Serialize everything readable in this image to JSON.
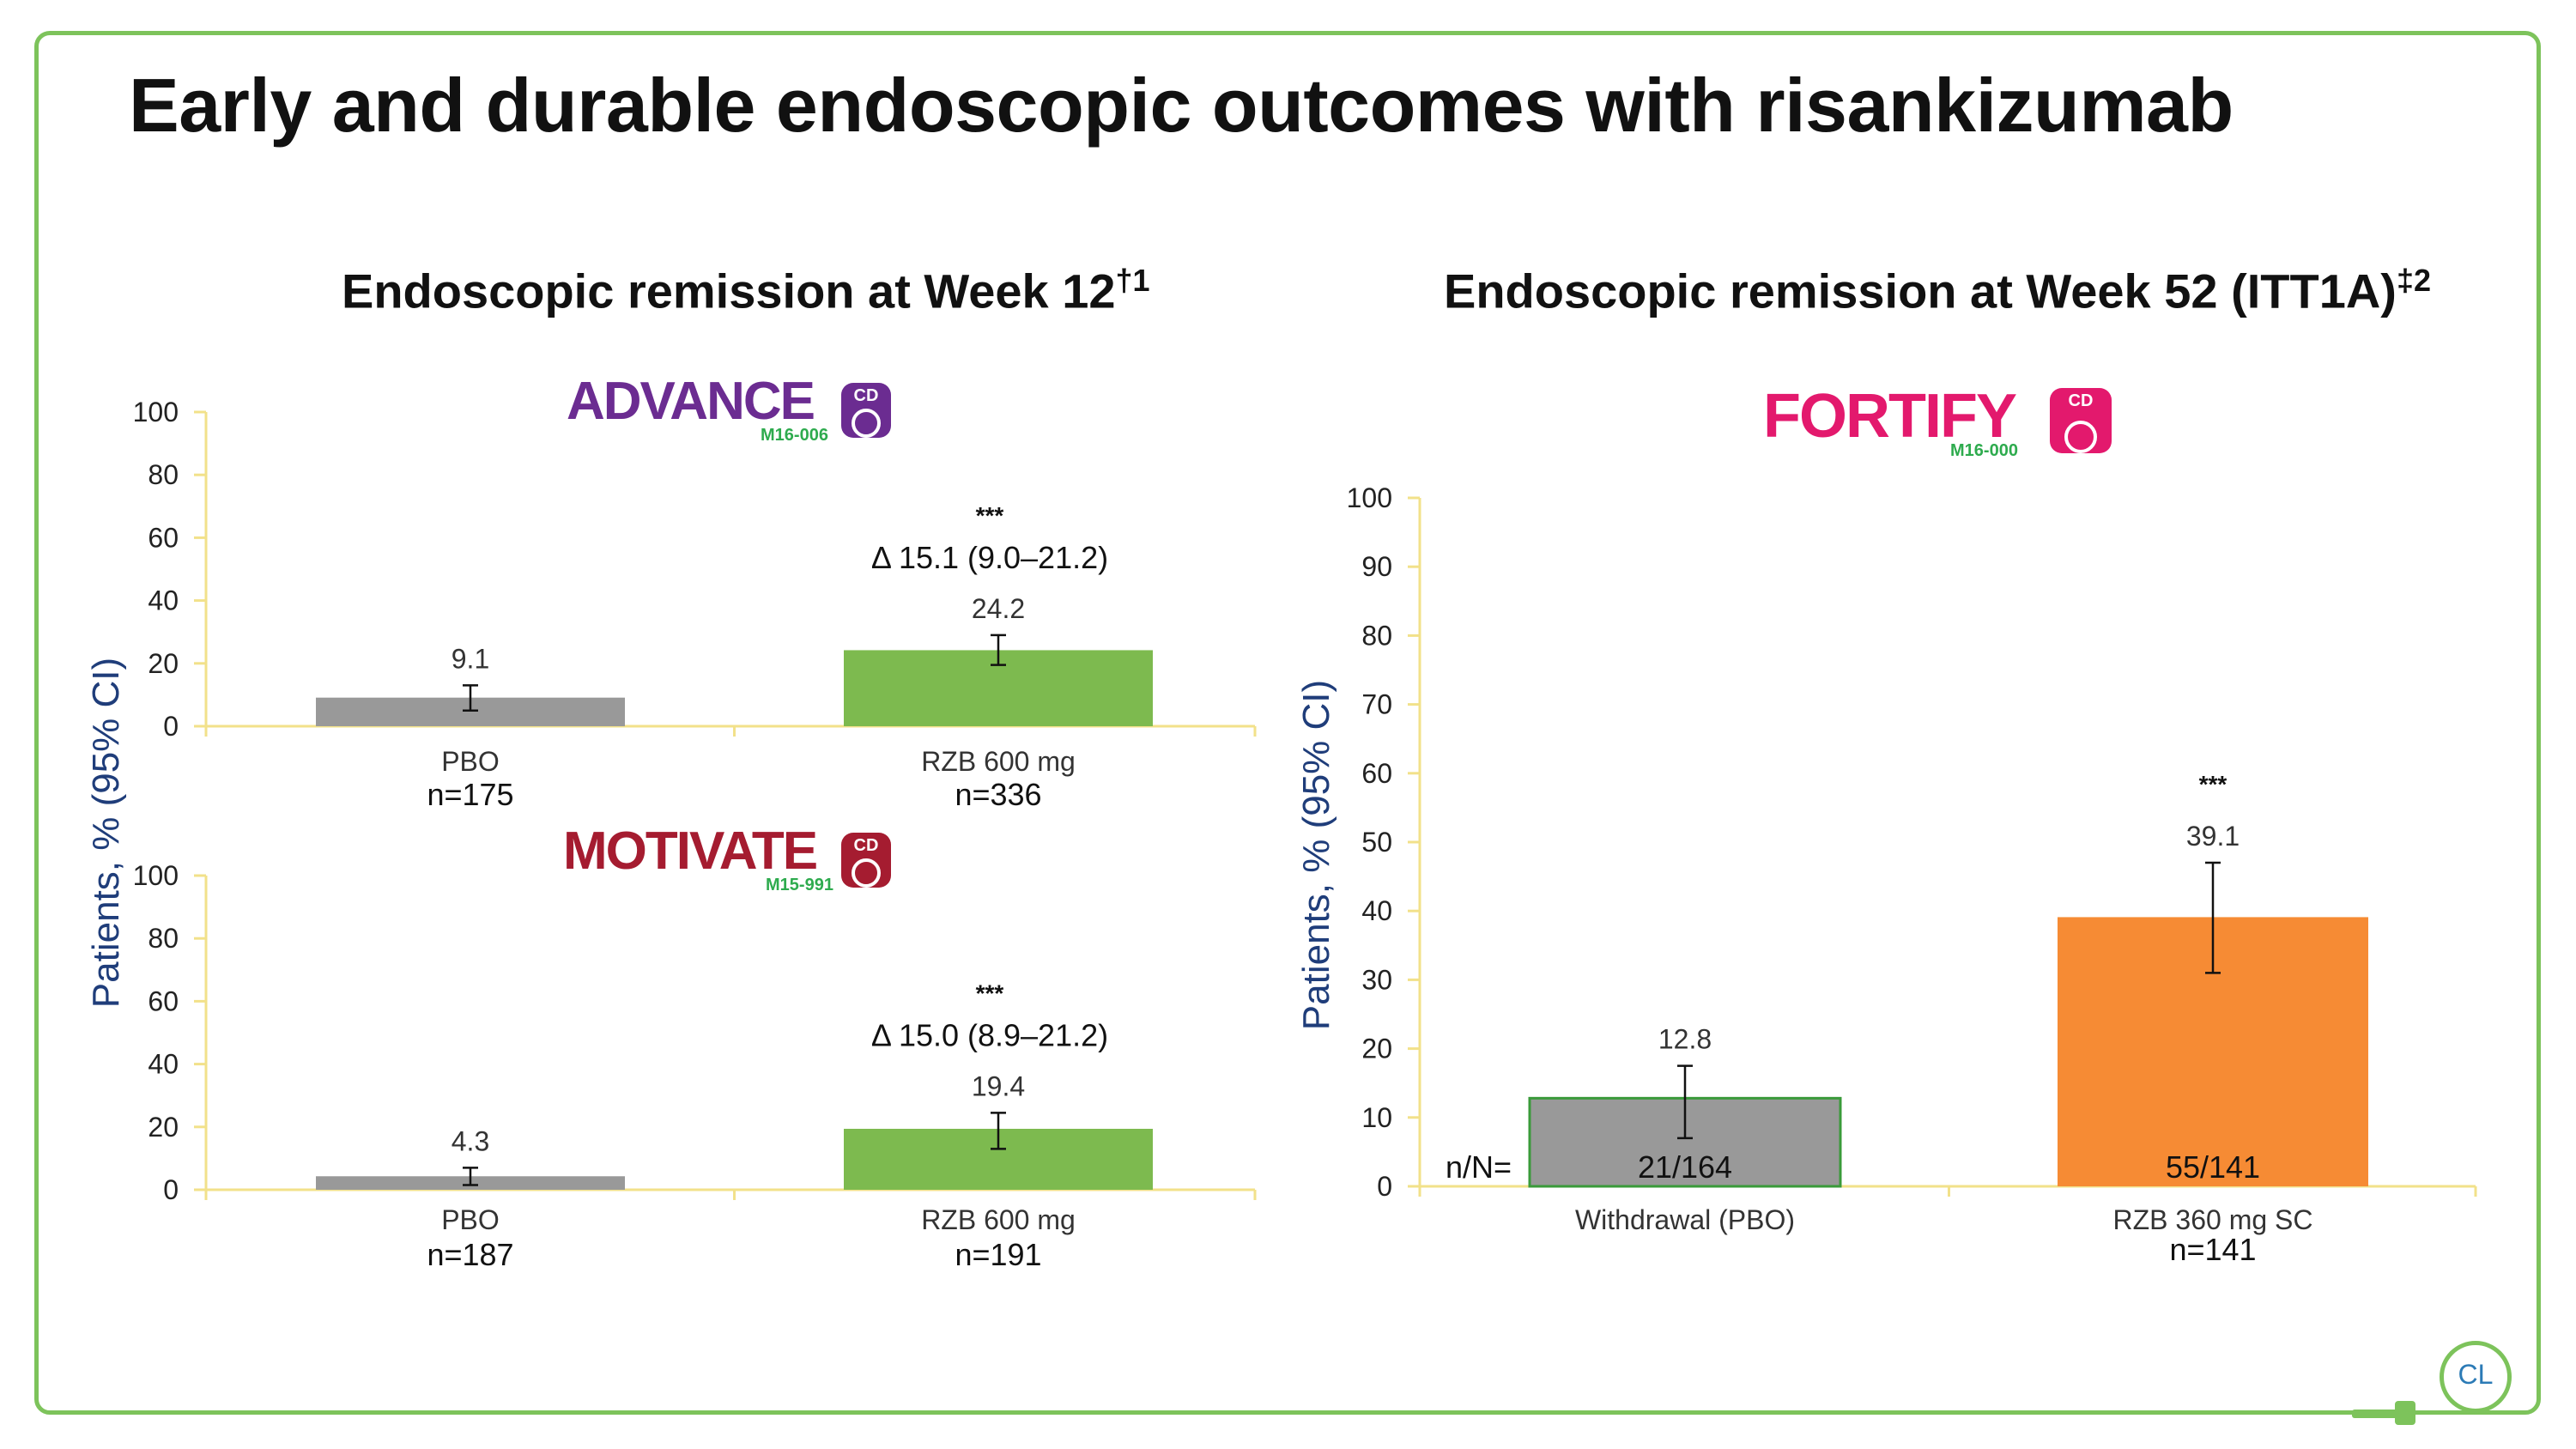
{
  "title": "Early and durable endoscopic outcomes with risankizumab",
  "panels": [
    {
      "title": "Endoscopic remission at Week 12",
      "sup": "†1"
    },
    {
      "title": "Endoscopic remission at Week 52 (ITT1A)",
      "sup": "‡2"
    }
  ],
  "logos": {
    "advance": {
      "name": "ADVANCE",
      "code": "M16-006",
      "badge": "CD",
      "color": "#6b2c91"
    },
    "motivate": {
      "name": "MOTIVATE",
      "code": "M15-991",
      "badge": "CD",
      "color": "#a51c30"
    },
    "fortify": {
      "name": "FORTIFY",
      "code": "M16-000",
      "badge": "CD",
      "color": "#e3196d"
    }
  },
  "colors": {
    "pbo": "#999999",
    "rzb_iv": "#7dba4f",
    "rzb_sc": "#f68b34",
    "axis": "#f2e18a",
    "frame": "#7dc35b"
  },
  "chart_data": [
    {
      "type": "bar",
      "study": "ADVANCE",
      "categories": [
        "PBO",
        "RZB 600 mg"
      ],
      "n_labels": [
        "n=175",
        "n=336"
      ],
      "values": [
        9.1,
        24.2
      ],
      "ci": [
        [
          5.0,
          13.0
        ],
        [
          19.5,
          29.0
        ]
      ],
      "value_labels": [
        "9.1",
        "24.2"
      ],
      "significance": "***",
      "delta": "Δ 15.1 (9.0–21.2)",
      "ylim": [
        0,
        100
      ],
      "yticks": [
        0,
        20,
        40,
        60,
        80,
        100
      ],
      "ylabel": "Patients, % (95% CI)"
    },
    {
      "type": "bar",
      "study": "MOTIVATE",
      "categories": [
        "PBO",
        "RZB 600 mg"
      ],
      "n_labels": [
        "n=187",
        "n=191"
      ],
      "values": [
        4.3,
        19.4
      ],
      "ci": [
        [
          1.5,
          7.0
        ],
        [
          13.0,
          24.5
        ]
      ],
      "value_labels": [
        "4.3",
        "19.4"
      ],
      "significance": "***",
      "delta": "Δ 15.0 (8.9–21.2)",
      "ylim": [
        0,
        100
      ],
      "yticks": [
        0,
        20,
        40,
        60,
        80,
        100
      ],
      "ylabel": "Patients, % (95% CI)"
    },
    {
      "type": "bar",
      "study": "FORTIFY",
      "categories": [
        "Withdrawal (PBO)",
        "RZB 360 mg SC"
      ],
      "n_labels": [
        "",
        "n=141"
      ],
      "values": [
        12.8,
        39.1
      ],
      "ci": [
        [
          7.0,
          17.5
        ],
        [
          31.0,
          47.0
        ]
      ],
      "value_labels": [
        "12.8",
        "39.1"
      ],
      "in_bar_labels": [
        "21/164",
        "55/141"
      ],
      "nN_label": "n/N=",
      "significance": "***",
      "ylim": [
        0,
        100
      ],
      "yticks": [
        0,
        10,
        20,
        30,
        40,
        50,
        60,
        70,
        80,
        90,
        100
      ],
      "ylabel": "Patients, % (95% CI)"
    }
  ]
}
